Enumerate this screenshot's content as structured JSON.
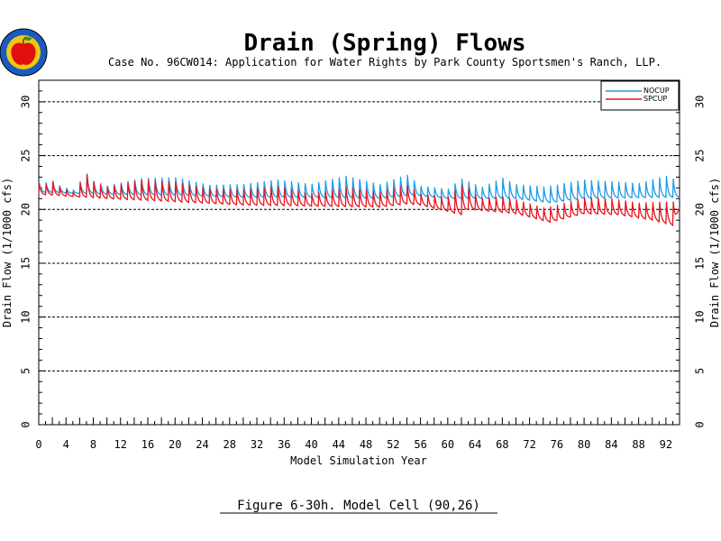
{
  "header": {
    "title": "Drain (Spring) Flows",
    "subtitle": "Case No. 96CW014: Application for Water Rights by Park County Sportsmen's Ranch, LLP."
  },
  "caption": "Figure 6-30h.  Model Cell (90,26)",
  "logo": {
    "icon": "apple-seal-icon",
    "colors": [
      "#1a5bbf",
      "#f2c80f",
      "#e01010",
      "#2a9a2a"
    ]
  },
  "chart_data": {
    "type": "line",
    "xlabel": "Model Simulation Year",
    "ylabel": "Drain Flow (1/1000 cfs)",
    "xlim": [
      0,
      94
    ],
    "ylim": [
      0,
      32
    ],
    "x_ticks": [
      0,
      4,
      8,
      12,
      16,
      20,
      24,
      28,
      32,
      36,
      40,
      44,
      48,
      52,
      56,
      60,
      64,
      68,
      72,
      76,
      80,
      84,
      88,
      92
    ],
    "x_tick_labels": [
      "0",
      "4",
      "8",
      "12",
      "16",
      "20",
      "24",
      "28",
      "32",
      "36",
      "40",
      "44",
      "48",
      "52",
      "56",
      "60",
      "64",
      "68",
      "72",
      "76",
      "80",
      "84",
      "88",
      "92"
    ],
    "y_ticks": [
      0,
      5,
      10,
      15,
      20,
      25,
      30
    ],
    "y_tick_labels": [
      "0",
      "5",
      "10",
      "15",
      "20",
      "25",
      "30"
    ],
    "grid": "horizontal dashed",
    "legend_position": "top-right",
    "series": [
      {
        "name": "NOCUP",
        "color": "#1e9be6",
        "annual_base": [
          [
            0,
            21.6
          ],
          [
            10,
            21.4
          ],
          [
            20,
            21.3
          ],
          [
            30,
            21.1
          ],
          [
            40,
            21.1
          ],
          [
            50,
            21.0
          ],
          [
            55,
            21.3
          ],
          [
            60,
            21.0
          ],
          [
            62,
            21.0
          ],
          [
            70,
            21.0
          ],
          [
            75,
            20.6
          ],
          [
            80,
            21.0
          ],
          [
            90,
            21.1
          ],
          [
            94,
            21.1
          ]
        ],
        "annual_peak": [
          [
            0,
            22.6
          ],
          [
            1,
            22.6
          ],
          [
            2,
            22.8
          ],
          [
            3,
            22.3
          ],
          [
            5,
            21.8
          ],
          [
            7,
            23.6
          ],
          [
            8,
            22.8
          ],
          [
            10,
            22.3
          ],
          [
            15,
            23.1
          ],
          [
            20,
            23.2
          ],
          [
            25,
            22.4
          ],
          [
            30,
            22.5
          ],
          [
            35,
            23.0
          ],
          [
            40,
            22.5
          ],
          [
            45,
            23.4
          ],
          [
            50,
            22.5
          ],
          [
            54,
            23.5
          ],
          [
            56,
            22.3
          ],
          [
            60,
            22.0
          ],
          [
            62,
            23.1
          ],
          [
            65,
            22.2
          ],
          [
            68,
            23.2
          ],
          [
            70,
            22.5
          ],
          [
            74,
            22.3
          ],
          [
            76,
            22.5
          ],
          [
            80,
            23.0
          ],
          [
            84,
            22.8
          ],
          [
            88,
            22.6
          ],
          [
            92,
            23.4
          ],
          [
            94,
            22.8
          ]
        ]
      },
      {
        "name": "SPCUP",
        "color": "#e8141e",
        "annual_base": [
          [
            0,
            21.4
          ],
          [
            10,
            21.0
          ],
          [
            20,
            20.7
          ],
          [
            30,
            20.4
          ],
          [
            40,
            20.3
          ],
          [
            50,
            20.2
          ],
          [
            54,
            20.5
          ],
          [
            56,
            20.4
          ],
          [
            60,
            19.8
          ],
          [
            62,
            19.5
          ],
          [
            63,
            20.0
          ],
          [
            70,
            19.6
          ],
          [
            75,
            18.8
          ],
          [
            80,
            19.6
          ],
          [
            85,
            19.5
          ],
          [
            90,
            19.0
          ],
          [
            93,
            18.5
          ],
          [
            94,
            20.1
          ]
        ],
        "annual_peak": [
          [
            0,
            22.5
          ],
          [
            1,
            22.5
          ],
          [
            2,
            22.8
          ],
          [
            3,
            22.2
          ],
          [
            5,
            21.6
          ],
          [
            7,
            23.6
          ],
          [
            8,
            22.8
          ],
          [
            10,
            22.2
          ],
          [
            15,
            23.0
          ],
          [
            20,
            22.8
          ],
          [
            25,
            22.1
          ],
          [
            30,
            22.0
          ],
          [
            35,
            22.4
          ],
          [
            40,
            21.6
          ],
          [
            45,
            22.3
          ],
          [
            50,
            21.8
          ],
          [
            54,
            22.5
          ],
          [
            56,
            21.6
          ],
          [
            60,
            21.3
          ],
          [
            62,
            22.7
          ],
          [
            65,
            21.2
          ],
          [
            68,
            21.4
          ],
          [
            70,
            21.1
          ],
          [
            74,
            20.3
          ],
          [
            76,
            20.6
          ],
          [
            80,
            21.3
          ],
          [
            84,
            21.2
          ],
          [
            88,
            20.8
          ],
          [
            92,
            21.0
          ],
          [
            94,
            21.0
          ]
        ]
      }
    ]
  }
}
